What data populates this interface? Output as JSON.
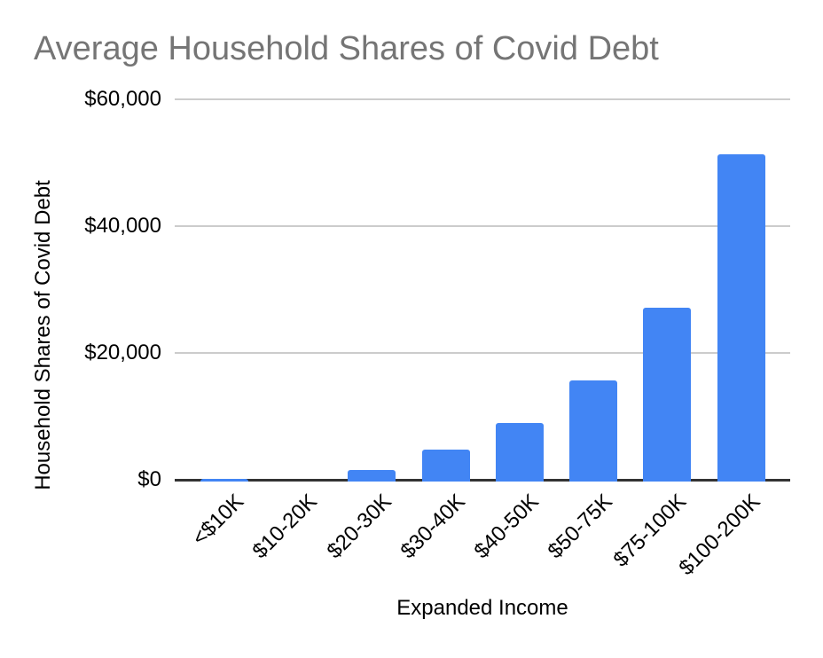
{
  "chart_data": {
    "type": "bar",
    "title": "Average Household Shares of Covid Debt",
    "xlabel": "Expanded Income",
    "ylabel": "Household Shares of Covid Debt",
    "categories": [
      "<$10K",
      "$10-20K",
      "$20-30K",
      "$30-40K",
      "$40-50K",
      "$50-75K",
      "$75-100K",
      "$100-200K"
    ],
    "values": [
      200,
      0,
      1500,
      4800,
      8900,
      15600,
      27100,
      51300
    ],
    "ylim": [
      0,
      60000
    ],
    "yticks": [
      {
        "value": 0,
        "label": "$0"
      },
      {
        "value": 20000,
        "label": "$20,000"
      },
      {
        "value": 40000,
        "label": "$40,000"
      },
      {
        "value": 60000,
        "label": "$60,000"
      }
    ],
    "grid": true,
    "legend": "none",
    "colors": {
      "bar": "#4285f4",
      "title": "#757575",
      "gridline": "#cccccc",
      "axis_line": "#333333",
      "labels": "#000000"
    }
  }
}
